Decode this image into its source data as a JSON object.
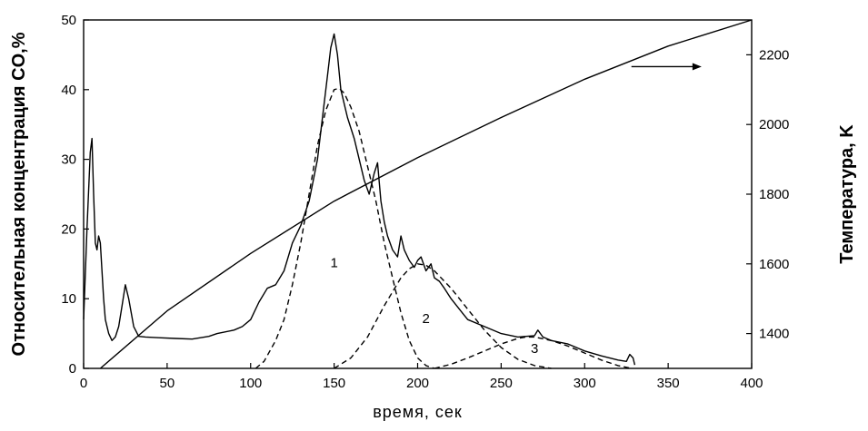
{
  "chart_data": {
    "type": "line",
    "title": "",
    "xlabel": "время, сек",
    "ylabel": "Относительная концентрация CO,%",
    "y2label": "Температура, K",
    "xlim": [
      0,
      400
    ],
    "ylim": [
      0,
      50
    ],
    "y2lim": [
      1300,
      2300
    ],
    "xticks": [
      0,
      50,
      100,
      150,
      200,
      250,
      300,
      350,
      400
    ],
    "yticks": [
      0,
      10,
      20,
      30,
      40,
      50
    ],
    "y2ticks": [
      1400,
      1600,
      1800,
      2000,
      2200
    ],
    "grid": false,
    "legend": "none",
    "peak_labels": [
      {
        "text": "1",
        "x": 150,
        "y": 14.5
      },
      {
        "text": "2",
        "x": 205,
        "y": 6.5
      },
      {
        "text": "3",
        "x": 270,
        "y": 2.2
      }
    ],
    "arrow": {
      "from_x": 328,
      "to_x": 370,
      "y": 43.3,
      "points_to": "right axis"
    },
    "series": [
      {
        "style": "solid",
        "axis": "left",
        "x": [
          0,
          2,
          4,
          5,
          6,
          7,
          8,
          9,
          10,
          11,
          12,
          13,
          15,
          17,
          19,
          21,
          23,
          25,
          27,
          30,
          33,
          37,
          45,
          55,
          65,
          75,
          80,
          90,
          95,
          100,
          105,
          110,
          115,
          120,
          125,
          130,
          135,
          140,
          143,
          146,
          148,
          150,
          152,
          154,
          158,
          162,
          165,
          168,
          171,
          174,
          176,
          178,
          180,
          182,
          185,
          188,
          190,
          192,
          195,
          198,
          200,
          202,
          205,
          208,
          210,
          213,
          216,
          220,
          225,
          230,
          240,
          250,
          260,
          270,
          272,
          275,
          280,
          290,
          300,
          310,
          320,
          325,
          327,
          329,
          330
        ],
        "y": [
          7,
          20,
          31,
          33,
          25,
          18,
          17,
          19,
          18,
          14,
          10,
          7,
          5,
          4,
          4.5,
          6,
          9,
          12,
          10,
          6,
          4.6,
          4.5,
          4.4,
          4.3,
          4.2,
          4.6,
          5,
          5.5,
          6,
          7,
          9.5,
          11.5,
          12,
          14,
          18,
          20.5,
          24,
          30,
          36,
          42,
          46,
          48,
          45,
          40,
          36,
          33,
          30,
          27,
          25,
          28,
          29.5,
          24,
          21,
          19,
          17,
          16,
          19,
          17,
          15.5,
          14.5,
          15.5,
          16,
          14,
          15,
          13,
          12.5,
          11.5,
          10,
          8.5,
          7,
          6,
          5,
          4.5,
          4.7,
          5.5,
          4.5,
          4,
          3.5,
          2.5,
          1.8,
          1.2,
          1,
          2,
          1.5,
          0.5
        ]
      },
      {
        "style": "dashed",
        "axis": "left",
        "label": "1",
        "x": [
          103,
          108,
          115,
          120,
          125,
          130,
          135,
          140,
          145,
          150,
          153,
          156,
          160,
          165,
          170,
          175,
          180,
          185,
          190,
          195,
          200,
          205,
          210
        ],
        "y": [
          0,
          1,
          4,
          7,
          12,
          18,
          25,
          32,
          37,
          40,
          40.2,
          39.5,
          37.5,
          34,
          29,
          24,
          18,
          13,
          8,
          4,
          1.5,
          0.4,
          0
        ]
      },
      {
        "style": "dashed",
        "axis": "left",
        "label": "2",
        "x": [
          150,
          160,
          170,
          180,
          190,
          195,
          200,
          205,
          210,
          220,
          230,
          240,
          250,
          260,
          270,
          280
        ],
        "y": [
          0,
          1.5,
          4.5,
          9,
          13,
          14.3,
          15,
          14.8,
          14,
          11.5,
          8.5,
          5.5,
          3,
          1.3,
          0.4,
          0
        ]
      },
      {
        "style": "dashed",
        "axis": "left",
        "label": "3",
        "x": [
          210,
          220,
          230,
          240,
          250,
          260,
          265,
          270,
          280,
          290,
          300,
          310,
          320,
          328
        ],
        "y": [
          0,
          0.6,
          1.5,
          2.5,
          3.5,
          4.3,
          4.5,
          4.5,
          4,
          3.2,
          2.2,
          1.2,
          0.4,
          0
        ]
      },
      {
        "style": "solid",
        "axis": "right",
        "x": [
          10,
          50,
          100,
          150,
          200,
          250,
          300,
          350,
          400
        ],
        "y": [
          1300,
          1465,
          1630,
          1780,
          1905,
          2020,
          2130,
          2225,
          2300
        ]
      }
    ]
  }
}
